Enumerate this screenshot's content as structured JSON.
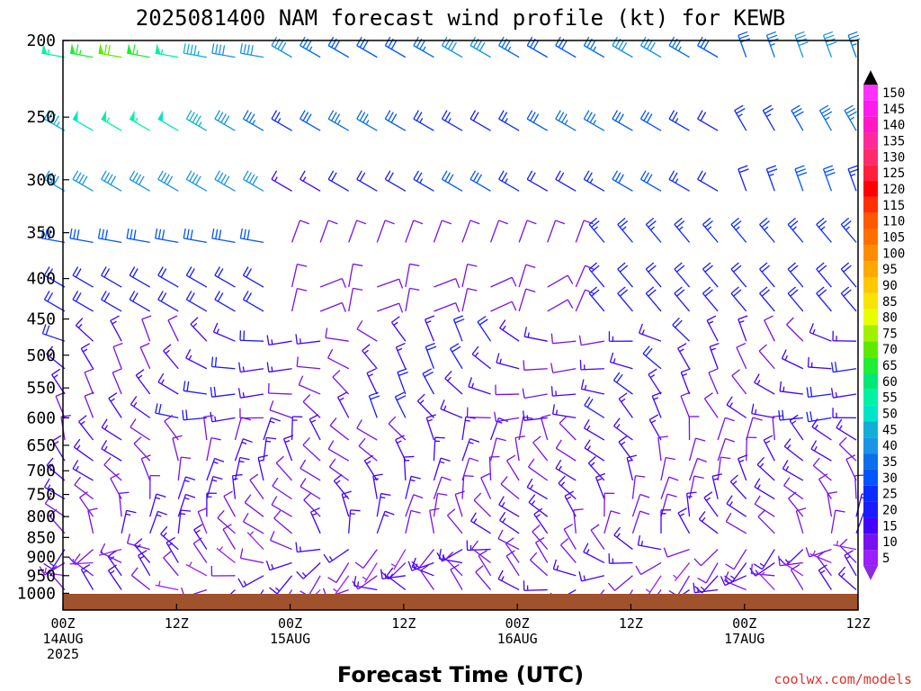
{
  "chart_data": {
    "type": "wind-barb-time-height",
    "title": "2025081400 NAM forecast wind profile (kt) for KEWB",
    "xlabel": "Forecast Time (UTC)",
    "credit": "coolwx.com/models",
    "y_axis": {
      "scale": "log-pressure",
      "ylim": [
        200,
        1050
      ],
      "ticks": [
        "200",
        "250",
        "300",
        "350",
        "400",
        "450",
        "500",
        "550",
        "600",
        "650",
        "700",
        "750",
        "800",
        "850",
        "900",
        "950",
        "1000"
      ]
    },
    "x_axis": {
      "xlim_hours": [
        0,
        84
      ],
      "ticks": [
        {
          "hour": 0,
          "lines": [
            "00Z",
            "14AUG",
            "2025"
          ]
        },
        {
          "hour": 12,
          "lines": [
            "12Z"
          ]
        },
        {
          "hour": 24,
          "lines": [
            "00Z",
            "15AUG"
          ]
        },
        {
          "hour": 36,
          "lines": [
            "12Z"
          ]
        },
        {
          "hour": 48,
          "lines": [
            "00Z",
            "16AUG"
          ]
        },
        {
          "hour": 60,
          "lines": [
            "12Z"
          ]
        },
        {
          "hour": 72,
          "lines": [
            "00Z",
            "17AUG"
          ]
        },
        {
          "hour": 84,
          "lines": [
            "12Z"
          ]
        }
      ]
    },
    "colorbar": {
      "levels": [
        5,
        10,
        15,
        20,
        25,
        30,
        35,
        40,
        45,
        50,
        55,
        60,
        65,
        70,
        75,
        80,
        85,
        90,
        95,
        100,
        105,
        110,
        115,
        120,
        125,
        130,
        135,
        140,
        145,
        150
      ],
      "colors": [
        "#9a1fff",
        "#7711ee",
        "#4400ff",
        "#1a1aff",
        "#0b2bff",
        "#0055ff",
        "#0a6fe8",
        "#1894e8",
        "#12aed8",
        "#00e5c8",
        "#00f2a2",
        "#00e878",
        "#20ee34",
        "#5eea00",
        "#a0f000",
        "#e8ff00",
        "#f8e400",
        "#ffc800",
        "#ffa800",
        "#ff8c00",
        "#ff7000",
        "#ff5a00",
        "#ff3000",
        "#ff0000",
        "#ff1f3c",
        "#ff2a6a",
        "#ff2a9a",
        "#ff18c4",
        "#ff1aee",
        "#ff30ff"
      ]
    },
    "barb_levels_hPa": [
      210,
      260,
      310,
      360,
      410,
      440,
      480,
      520,
      560,
      600,
      640,
      680,
      720,
      760,
      800,
      840,
      880,
      915,
      950,
      990
    ],
    "speed_by_level_kt": {
      "210": "12-00Z 55-75 kt, then 35-40 kt",
      "260": "00-24Z 40-60 kt, then 25-35 kt",
      "310": "00-24Z 30-45 kt, then 20-35 kt",
      "360": "25-30 kt early, light 5-15 kt on 15-16AUG",
      "500-800": "mostly 5-15 kt",
      "900-1000": "5-15 kt, surface calm to 10 kt"
    },
    "grid": false,
    "legend": "colorbar right"
  }
}
